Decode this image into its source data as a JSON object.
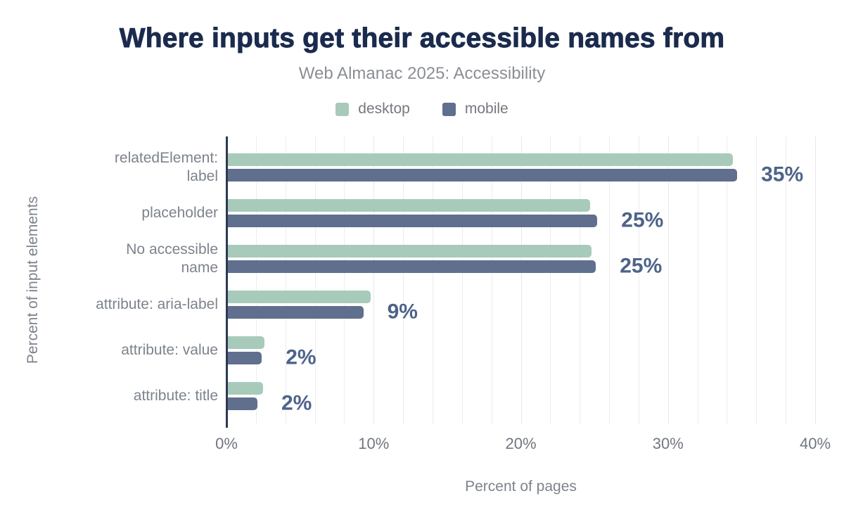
{
  "chart_data": {
    "type": "bar",
    "orientation": "horizontal",
    "title": "Where inputs get their accessible names from",
    "subtitle": "Web Almanac 2025: Accessibility",
    "xlabel": "Percent of pages",
    "ylabel": "Percent of input elements",
    "xlim": [
      0,
      40
    ],
    "grid": "vertical minor gridlines every 2%, no horizontal gridlines",
    "grid_step_pct": 2,
    "legend_position": "top center",
    "x_ticks": [
      {
        "label": "0%",
        "value": 0
      },
      {
        "label": "10%",
        "value": 10
      },
      {
        "label": "20%",
        "value": 20
      },
      {
        "label": "30%",
        "value": 30
      },
      {
        "label": "40%",
        "value": 40
      }
    ],
    "categories": [
      "relatedElement: label",
      "placeholder",
      "No accessible name",
      "attribute: aria-label",
      "attribute: value",
      "attribute: title"
    ],
    "categories_display": [
      "relatedElement:\nlabel",
      "placeholder",
      "No accessible\nname",
      "attribute: aria-label",
      "attribute: value",
      "attribute: title"
    ],
    "series": [
      {
        "name": "desktop",
        "color": "#a8cabb",
        "values": [
          34.4,
          24.7,
          24.8,
          9.8,
          2.6,
          2.5
        ]
      },
      {
        "name": "mobile",
        "color": "#5f6f8d",
        "values": [
          34.7,
          25.2,
          25.1,
          9.3,
          2.4,
          2.1
        ]
      }
    ],
    "value_labels": [
      "35%",
      "25%",
      "25%",
      "9%",
      "2%",
      "2%"
    ],
    "legend": [
      {
        "label": "desktop",
        "color": "#a8cabb"
      },
      {
        "label": "mobile",
        "color": "#5f6f8d"
      }
    ],
    "colors": {
      "title": "#1b2b4e",
      "subtitle": "#8b8e95",
      "axis_line": "#2c3a52",
      "gridline": "#ededf0",
      "muted_text": "#7d838c",
      "tick_text": "#71767f",
      "value_label": "#4d6389",
      "background": "#ffffff"
    }
  }
}
